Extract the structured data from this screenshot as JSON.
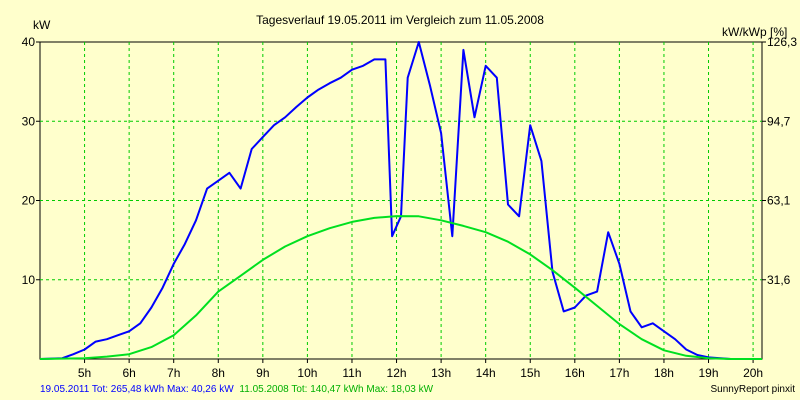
{
  "chart_data": {
    "type": "line",
    "title": "Tagesverlauf 19.05.2011 im Vergleich zum 11.05.2008",
    "ylabel_left": "kW",
    "ylabel_right": "kW/kWp [%]",
    "xlim": [
      4.0,
      20.2
    ],
    "ylim": [
      0,
      40
    ],
    "y_ticks": [
      10,
      20,
      30,
      40
    ],
    "y_right_ticks": [
      "31,6",
      "63,1",
      "94,7",
      "126,3"
    ],
    "x_ticks": [
      {
        "value": 5,
        "label": "5h"
      },
      {
        "value": 6,
        "label": "6h"
      },
      {
        "value": 7,
        "label": "7h"
      },
      {
        "value": 8,
        "label": "8h"
      },
      {
        "value": 9,
        "label": "9h"
      },
      {
        "value": 10,
        "label": "10h"
      },
      {
        "value": 11,
        "label": "11h"
      },
      {
        "value": 12,
        "label": "12h"
      },
      {
        "value": 13,
        "label": "13h"
      },
      {
        "value": 14,
        "label": "14h"
      },
      {
        "value": 15,
        "label": "15h"
      },
      {
        "value": 16,
        "label": "16h"
      },
      {
        "value": 17,
        "label": "17h"
      },
      {
        "value": 18,
        "label": "18h"
      },
      {
        "value": 19,
        "label": "19h"
      },
      {
        "value": 20,
        "label": "20h"
      }
    ],
    "grid": true,
    "series": [
      {
        "color": "#0000FF",
        "points": [
          [
            4.0,
            0
          ],
          [
            4.5,
            0.1
          ],
          [
            4.75,
            0.6
          ],
          [
            5.0,
            1.2
          ],
          [
            5.25,
            2.2
          ],
          [
            5.5,
            2.5
          ],
          [
            5.75,
            3.0
          ],
          [
            6.0,
            3.5
          ],
          [
            6.25,
            4.5
          ],
          [
            6.5,
            6.5
          ],
          [
            6.75,
            9
          ],
          [
            7.0,
            12
          ],
          [
            7.25,
            14.5
          ],
          [
            7.5,
            17.5
          ],
          [
            7.75,
            21.5
          ],
          [
            8.0,
            22.5
          ],
          [
            8.25,
            23.5
          ],
          [
            8.5,
            21.5
          ],
          [
            8.75,
            26.5
          ],
          [
            9.0,
            28.0
          ],
          [
            9.25,
            29.5
          ],
          [
            9.5,
            30.5
          ],
          [
            9.75,
            31.8
          ],
          [
            10.0,
            33.0
          ],
          [
            10.25,
            34.0
          ],
          [
            10.5,
            34.8
          ],
          [
            10.75,
            35.5
          ],
          [
            11.0,
            36.5
          ],
          [
            11.25,
            37.0
          ],
          [
            11.5,
            37.8
          ],
          [
            11.75,
            37.8
          ],
          [
            11.9,
            15.5
          ],
          [
            12.1,
            18.0
          ],
          [
            12.25,
            35.5
          ],
          [
            12.5,
            40.2
          ],
          [
            12.75,
            34.5
          ],
          [
            13.0,
            28.5
          ],
          [
            13.25,
            15.5
          ],
          [
            13.5,
            39.0
          ],
          [
            13.75,
            30.5
          ],
          [
            14.0,
            37.0
          ],
          [
            14.25,
            35.5
          ],
          [
            14.5,
            19.5
          ],
          [
            14.75,
            18.0
          ],
          [
            15.0,
            29.5
          ],
          [
            15.25,
            25.0
          ],
          [
            15.5,
            11.0
          ],
          [
            15.75,
            6.0
          ],
          [
            16.0,
            6.5
          ],
          [
            16.25,
            8.0
          ],
          [
            16.5,
            8.5
          ],
          [
            16.75,
            16.0
          ],
          [
            17.0,
            12.0
          ],
          [
            17.25,
            6.0
          ],
          [
            17.5,
            4.0
          ],
          [
            17.75,
            4.5
          ],
          [
            18.0,
            3.5
          ],
          [
            18.25,
            2.5
          ],
          [
            18.5,
            1.2
          ],
          [
            18.75,
            0.5
          ],
          [
            19.0,
            0.2
          ],
          [
            19.5,
            0
          ],
          [
            20.2,
            0
          ]
        ],
        "caption": "19.05.2011 Tot: 265,48 kWh Max: 40,26 kW"
      },
      {
        "color": "#00E020",
        "points": [
          [
            4.0,
            0
          ],
          [
            5.0,
            0.1
          ],
          [
            5.5,
            0.3
          ],
          [
            6.0,
            0.6
          ],
          [
            6.5,
            1.5
          ],
          [
            7.0,
            3.0
          ],
          [
            7.5,
            5.5
          ],
          [
            8.0,
            8.5
          ],
          [
            8.5,
            10.5
          ],
          [
            9.0,
            12.5
          ],
          [
            9.5,
            14.2
          ],
          [
            10.0,
            15.5
          ],
          [
            10.5,
            16.5
          ],
          [
            11.0,
            17.3
          ],
          [
            11.5,
            17.8
          ],
          [
            12.0,
            18.03
          ],
          [
            12.5,
            18.0
          ],
          [
            13.0,
            17.5
          ],
          [
            13.5,
            16.8
          ],
          [
            14.0,
            16.0
          ],
          [
            14.5,
            14.8
          ],
          [
            15.0,
            13.2
          ],
          [
            15.5,
            11.2
          ],
          [
            16.0,
            9.0
          ],
          [
            16.5,
            6.7
          ],
          [
            17.0,
            4.4
          ],
          [
            17.5,
            2.5
          ],
          [
            18.0,
            1.1
          ],
          [
            18.5,
            0.4
          ],
          [
            19.0,
            0.1
          ],
          [
            19.5,
            0
          ],
          [
            20.2,
            0
          ]
        ],
        "caption": "11.05.2008 Tot: 140,47 kWh Max: 18,03 kW"
      }
    ],
    "credit": "SunnyReport pinxit"
  }
}
